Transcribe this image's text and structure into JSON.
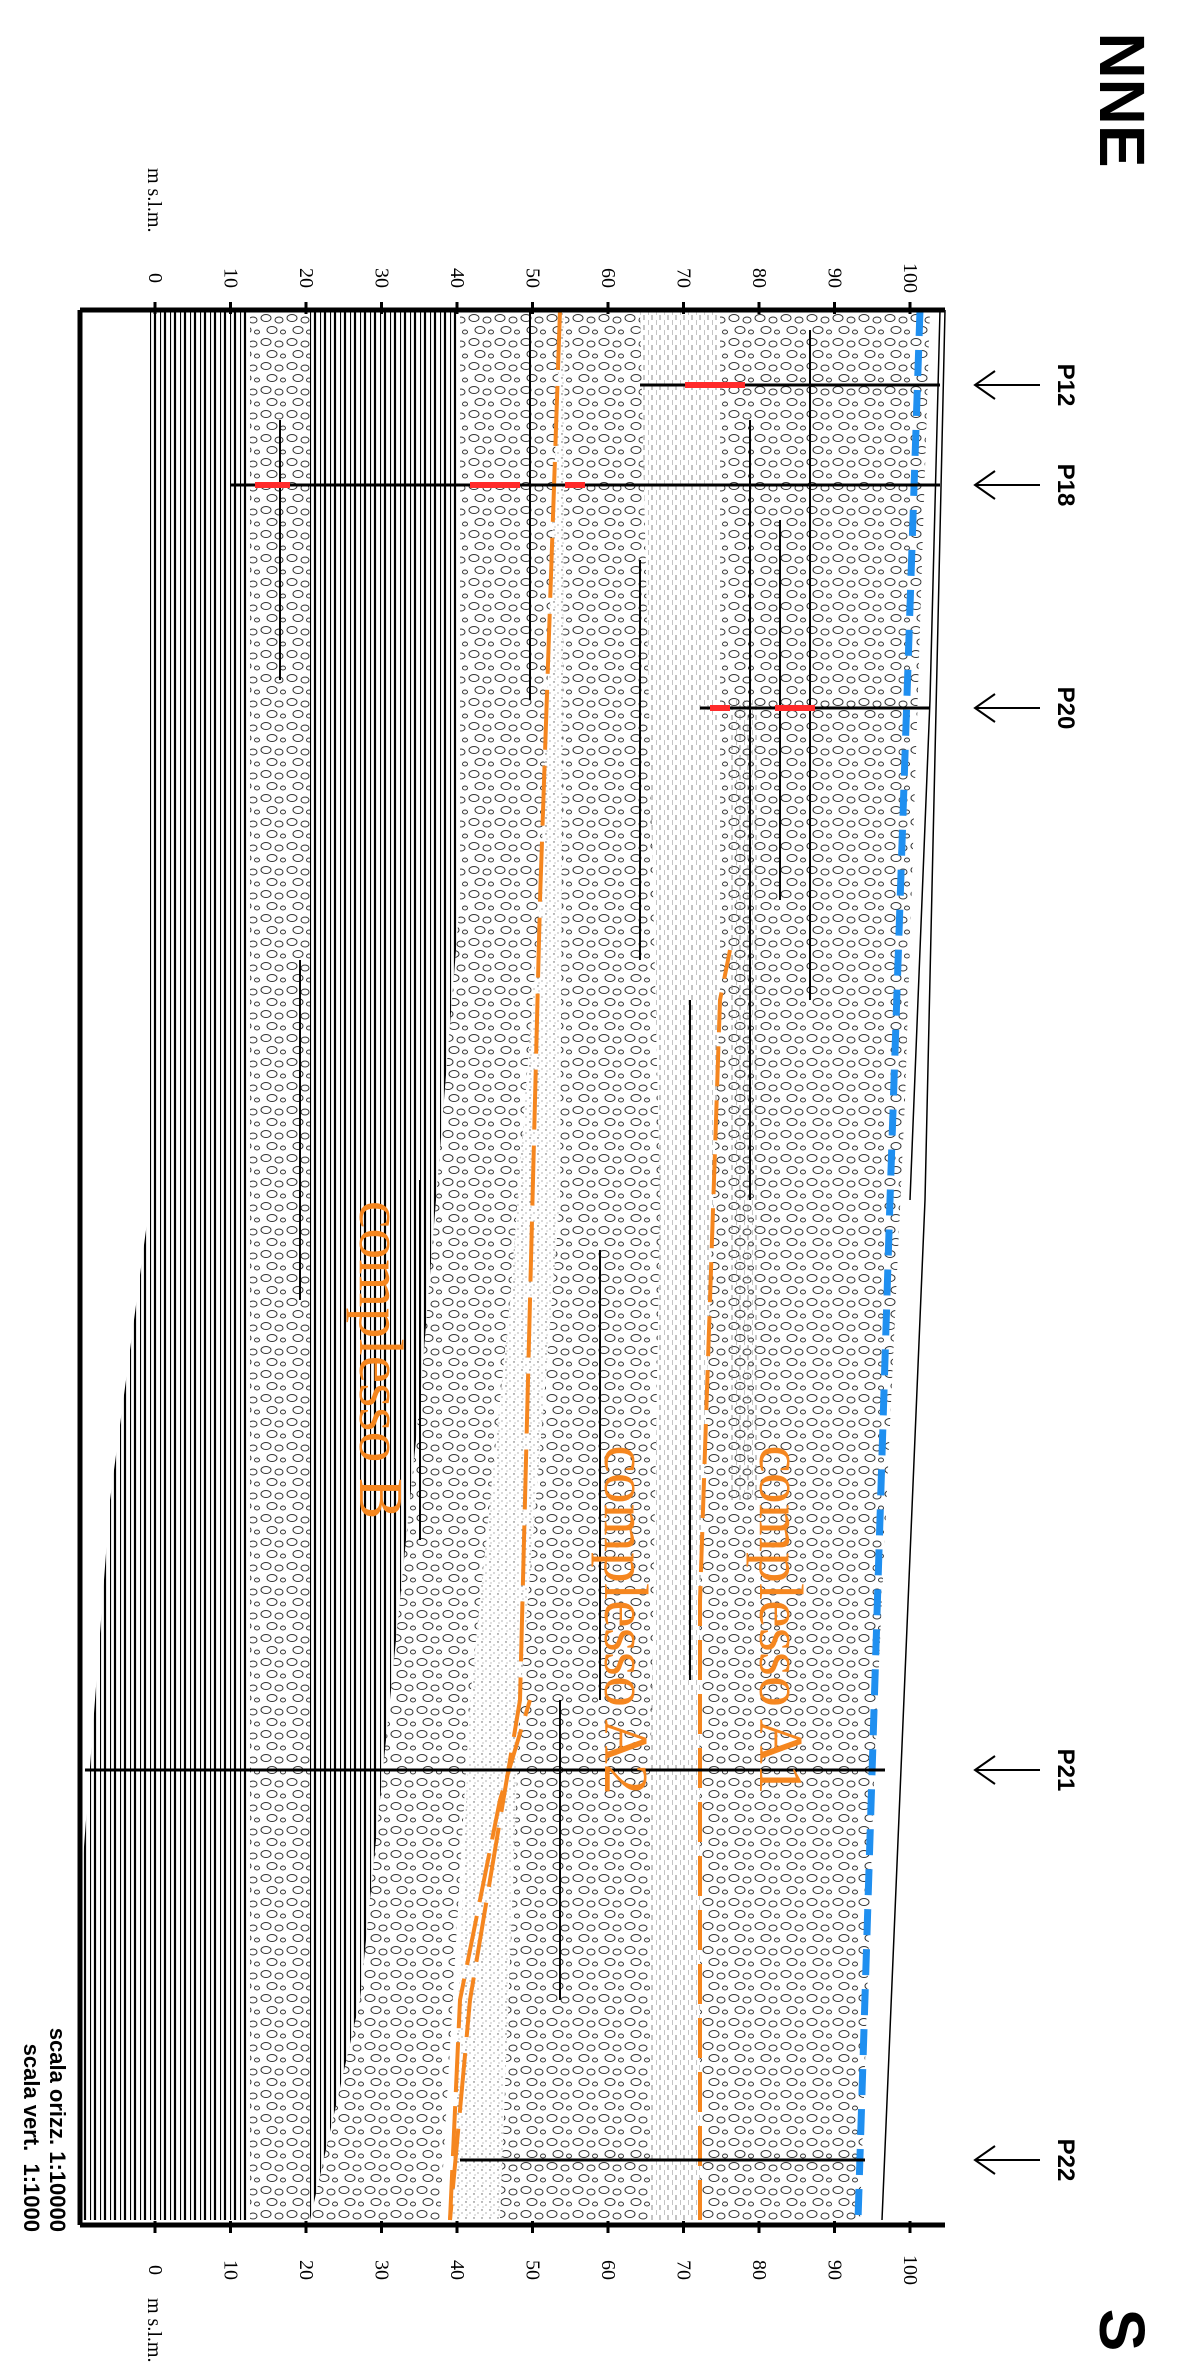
{
  "direction": {
    "start": "NNE",
    "end": "S"
  },
  "axis_unit": "m s.l.m.",
  "ticks": [
    "0",
    "10",
    "20",
    "30",
    "40",
    "50",
    "60",
    "70",
    "80",
    "90",
    "100"
  ],
  "wells": [
    "P12",
    "P18",
    "P20",
    "P21",
    "P22"
  ],
  "complexes": [
    "complesso A1",
    "complesso A2",
    "complesso B"
  ],
  "scale": {
    "horizontal": "scala orizz. 1:10000",
    "vertical": "scala vert.  1:1000"
  },
  "colors": {
    "water_table": "#1f8ff0",
    "boundary": "#f5861f",
    "marker": "#ff2a2a"
  }
}
